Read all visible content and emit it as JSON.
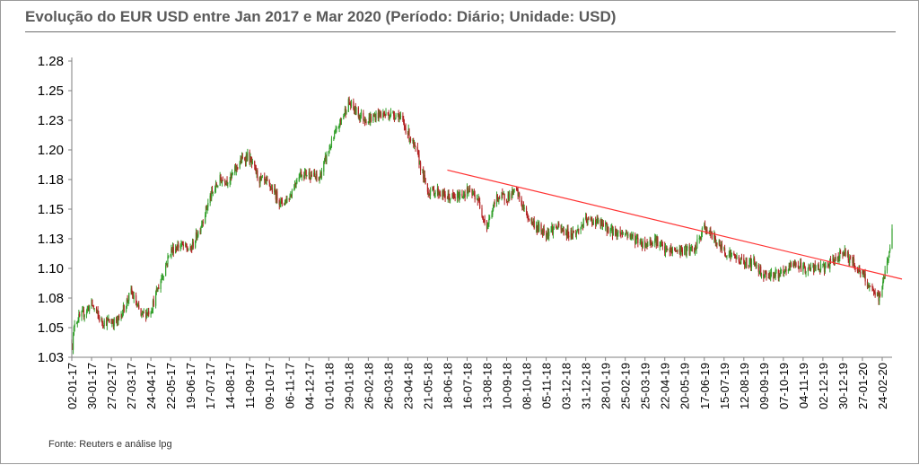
{
  "title": "Evolução do EUR USD entre Jan 2017 e Mar 2020 (Período: Diário; Unidade: USD)",
  "source": "Fonte: Reuters e análise lpg",
  "colors": {
    "up": "#33a02c",
    "down": "#b22222",
    "trendline": "#ff3333",
    "axis": "#7f7f7f",
    "title": "#5a5a5a"
  },
  "chart_data": {
    "type": "candlestick",
    "period": "daily",
    "unit": "USD",
    "ylim": [
      1.03,
      1.28
    ],
    "y_tick_labels": [
      "1.03",
      "1.05",
      "1.08",
      "1.10",
      "1.13",
      "1.15",
      "1.18",
      "1.20",
      "1.23",
      "1.25",
      "1.28"
    ],
    "y_tick_values": [
      1.03,
      1.055,
      1.08,
      1.105,
      1.13,
      1.155,
      1.18,
      1.205,
      1.23,
      1.255,
      1.28
    ],
    "x_tick_labels": [
      "02-01-17",
      "30-01-17",
      "27-02-17",
      "27-03-17",
      "24-04-17",
      "22-05-17",
      "19-06-17",
      "17-07-17",
      "14-08-17",
      "11-09-17",
      "09-10-17",
      "06-11-17",
      "04-12-17",
      "01-01-18",
      "29-01-18",
      "26-02-18",
      "26-03-18",
      "23-04-18",
      "21-05-18",
      "18-06-18",
      "16-07-18",
      "13-08-18",
      "10-09-18",
      "08-10-18",
      "05-11-18",
      "03-12-18",
      "31-12-18",
      "28-01-19",
      "25-02-19",
      "25-03-19",
      "22-04-19",
      "20-05-19",
      "17-06-19",
      "15-07-19",
      "12-08-19",
      "09-09-19",
      "07-10-19",
      "04-11-19",
      "02-12-19",
      "30-12-19",
      "27-01-20",
      "24-02-20"
    ],
    "x_start": "2017-01-02",
    "x_end": "2020-03-09",
    "series": [
      {
        "path_dates": [
          "2017-01-02",
          "2017-01-03",
          "2017-01-06",
          "2017-01-16",
          "2017-01-30",
          "2017-02-13",
          "2017-02-27",
          "2017-03-08",
          "2017-03-27",
          "2017-04-10",
          "2017-04-24",
          "2017-05-08",
          "2017-05-22",
          "2017-06-05",
          "2017-06-19",
          "2017-07-03",
          "2017-07-17",
          "2017-07-31",
          "2017-08-14",
          "2017-08-28",
          "2017-09-08",
          "2017-09-25",
          "2017-10-09",
          "2017-10-26",
          "2017-11-06",
          "2017-11-20",
          "2017-12-04",
          "2017-12-18",
          "2018-01-01",
          "2018-01-15",
          "2018-01-29",
          "2018-02-12",
          "2018-02-26",
          "2018-03-12",
          "2018-03-26",
          "2018-04-09",
          "2018-04-23",
          "2018-05-07",
          "2018-05-21",
          "2018-06-04",
          "2018-06-18",
          "2018-07-02",
          "2018-07-16",
          "2018-07-30",
          "2018-08-13",
          "2018-08-27",
          "2018-09-10",
          "2018-09-24",
          "2018-10-08",
          "2018-10-22",
          "2018-11-05",
          "2018-11-19",
          "2018-12-03",
          "2018-12-17",
          "2018-12-31",
          "2019-01-14",
          "2019-01-28",
          "2019-02-11",
          "2019-02-25",
          "2019-03-11",
          "2019-03-25",
          "2019-04-08",
          "2019-04-22",
          "2019-05-06",
          "2019-05-20",
          "2019-06-03",
          "2019-06-17",
          "2019-07-01",
          "2019-07-15",
          "2019-07-29",
          "2019-08-12",
          "2019-08-26",
          "2019-09-09",
          "2019-09-23",
          "2019-10-07",
          "2019-10-21",
          "2019-11-04",
          "2019-11-18",
          "2019-12-02",
          "2019-12-16",
          "2019-12-30",
          "2020-01-13",
          "2020-01-27",
          "2020-02-10",
          "2020-02-20",
          "2020-03-02",
          "2020-03-09"
        ],
        "path_values": [
          1.045,
          1.04,
          1.06,
          1.065,
          1.075,
          1.06,
          1.06,
          1.06,
          1.085,
          1.065,
          1.07,
          1.095,
          1.12,
          1.125,
          1.12,
          1.14,
          1.165,
          1.18,
          1.18,
          1.195,
          1.2,
          1.18,
          1.175,
          1.16,
          1.165,
          1.185,
          1.185,
          1.18,
          1.205,
          1.225,
          1.245,
          1.235,
          1.23,
          1.235,
          1.235,
          1.235,
          1.22,
          1.2,
          1.17,
          1.17,
          1.165,
          1.165,
          1.17,
          1.165,
          1.14,
          1.165,
          1.165,
          1.17,
          1.15,
          1.14,
          1.135,
          1.14,
          1.135,
          1.135,
          1.145,
          1.145,
          1.14,
          1.135,
          1.135,
          1.13,
          1.125,
          1.13,
          1.12,
          1.12,
          1.12,
          1.12,
          1.14,
          1.13,
          1.12,
          1.115,
          1.11,
          1.11,
          1.1,
          1.1,
          1.1,
          1.11,
          1.105,
          1.105,
          1.105,
          1.11,
          1.12,
          1.11,
          1.1,
          1.085,
          1.08,
          1.11,
          1.135
        ]
      }
    ],
    "trendline": {
      "points": [
        {
          "x": "2018-06-18",
          "y": 1.188
        },
        {
          "x": "2020-03-23",
          "y": 1.096
        }
      ]
    },
    "grid": false,
    "legend": "none"
  }
}
